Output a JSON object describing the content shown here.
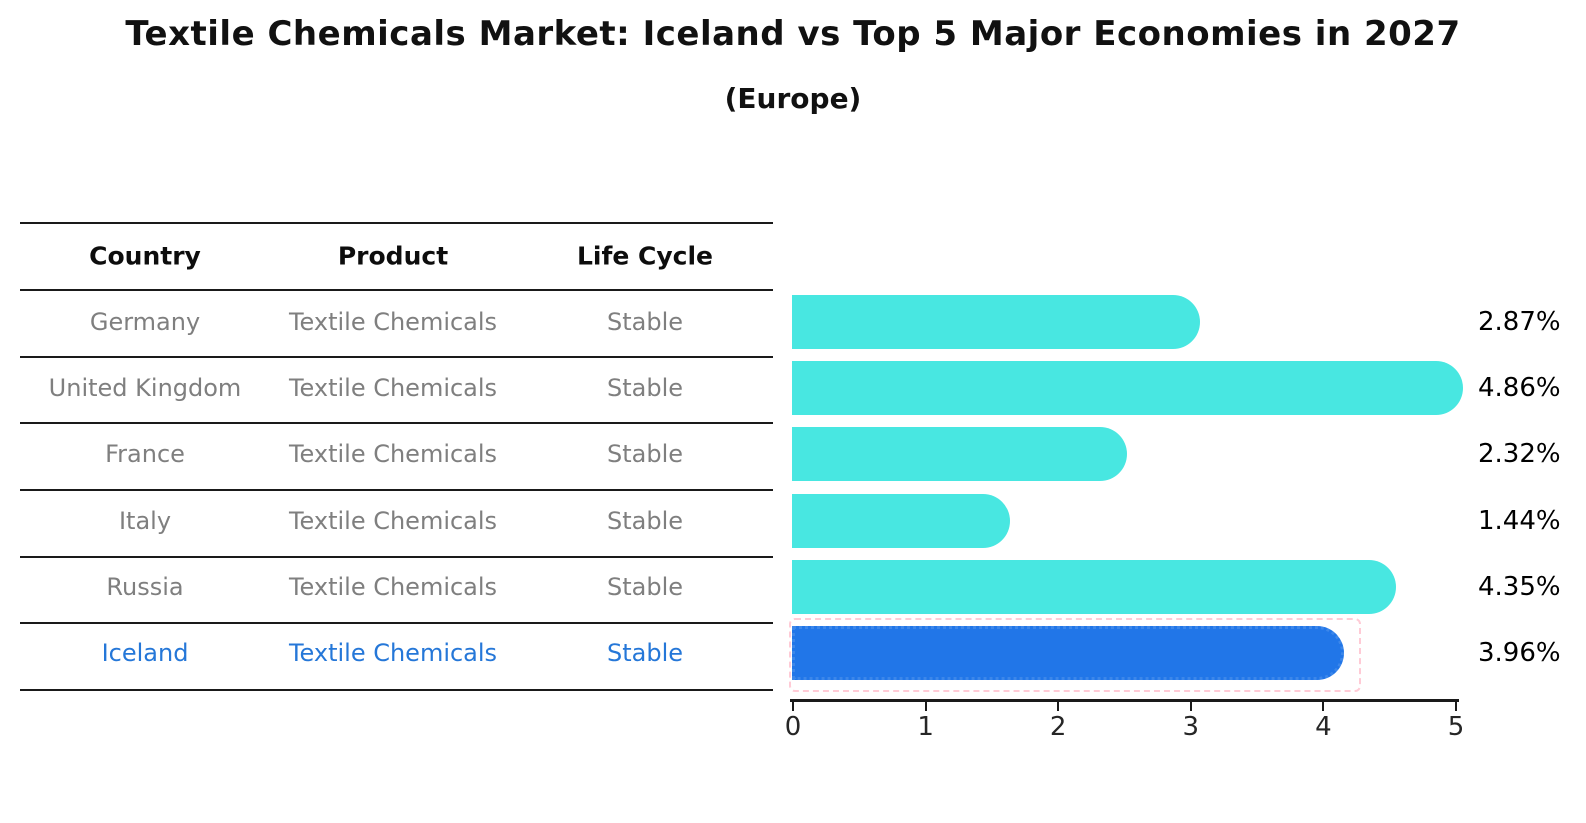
{
  "title": "Textile Chemicals Market: Iceland vs Top 5 Major Economies in 2027",
  "subtitle": "(Europe)",
  "table": {
    "headers": [
      "Country",
      "Product",
      "Life Cycle"
    ],
    "rows": [
      {
        "country": "Germany",
        "product": "Textile Chemicals",
        "life_cycle": "Stable",
        "highlighted": false
      },
      {
        "country": "United Kingdom",
        "product": "Textile Chemicals",
        "life_cycle": "Stable",
        "highlighted": false
      },
      {
        "country": "France",
        "product": "Textile Chemicals",
        "life_cycle": "Stable",
        "highlighted": false
      },
      {
        "country": "Italy",
        "product": "Textile Chemicals",
        "life_cycle": "Stable",
        "highlighted": false
      },
      {
        "country": "Russia",
        "product": "Textile Chemicals",
        "life_cycle": "Stable",
        "highlighted": false
      },
      {
        "country": "Iceland",
        "product": "Textile Chemicals",
        "life_cycle": "Stable",
        "highlighted": true
      }
    ]
  },
  "chart_data": {
    "type": "bar",
    "orientation": "horizontal",
    "title": "Textile Chemicals Market: Iceland vs Top 5 Major Economies in 2027 (Europe)",
    "categories": [
      "Germany",
      "United Kingdom",
      "France",
      "Italy",
      "Russia",
      "Iceland"
    ],
    "values": [
      2.87,
      4.86,
      2.32,
      1.44,
      4.35,
      3.96
    ],
    "value_labels": [
      "2.87%",
      "4.86%",
      "2.32%",
      "1.44%",
      "4.35%",
      "3.96%"
    ],
    "xlabel": "",
    "ylabel": "",
    "xlim": [
      0,
      5
    ],
    "x_ticks": [
      "0",
      "1",
      "2",
      "3",
      "4",
      "5"
    ],
    "grid": false,
    "legend": false,
    "highlight_index": 5,
    "colors": {
      "bar": "#48e7e1",
      "highlight_bar": "#2176e8",
      "highlight_bar_border": "#3c87ea",
      "highlight_text": "#2577d8",
      "row_text": "#7f7f7f",
      "header_text": "#0d0d0d",
      "table_lines": "#1a1a1a",
      "axis": "#1a1a1a",
      "value_label_text": "#000000"
    }
  }
}
